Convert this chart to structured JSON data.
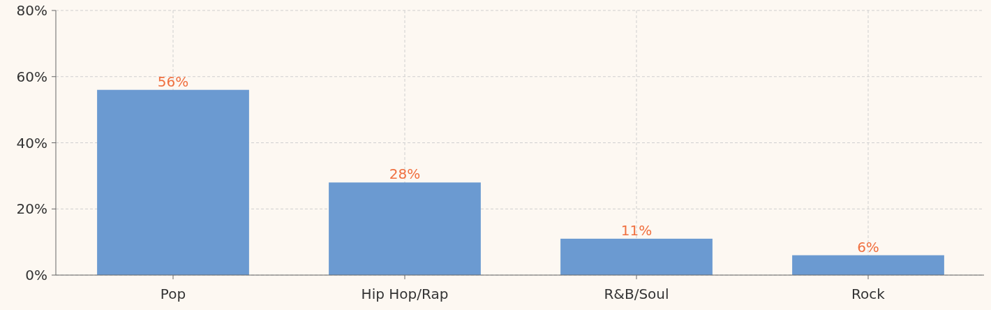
{
  "chart_data": {
    "type": "bar",
    "categories": [
      "Pop",
      "Hip Hop/Rap",
      "R&B/Soul",
      "Rock"
    ],
    "values": [
      56,
      28,
      11,
      6
    ],
    "value_labels": [
      "56%",
      "28%",
      "11%",
      "6%"
    ],
    "color": "#6b9ad1",
    "ylim": [
      0,
      80
    ],
    "yticks": [
      {
        "value": 0,
        "label": "0%"
      },
      {
        "value": 20,
        "label": "20%"
      },
      {
        "value": 40,
        "label": "40%"
      },
      {
        "value": 60,
        "label": "60%"
      },
      {
        "value": 80,
        "label": "80%"
      }
    ],
    "grid": true
  }
}
